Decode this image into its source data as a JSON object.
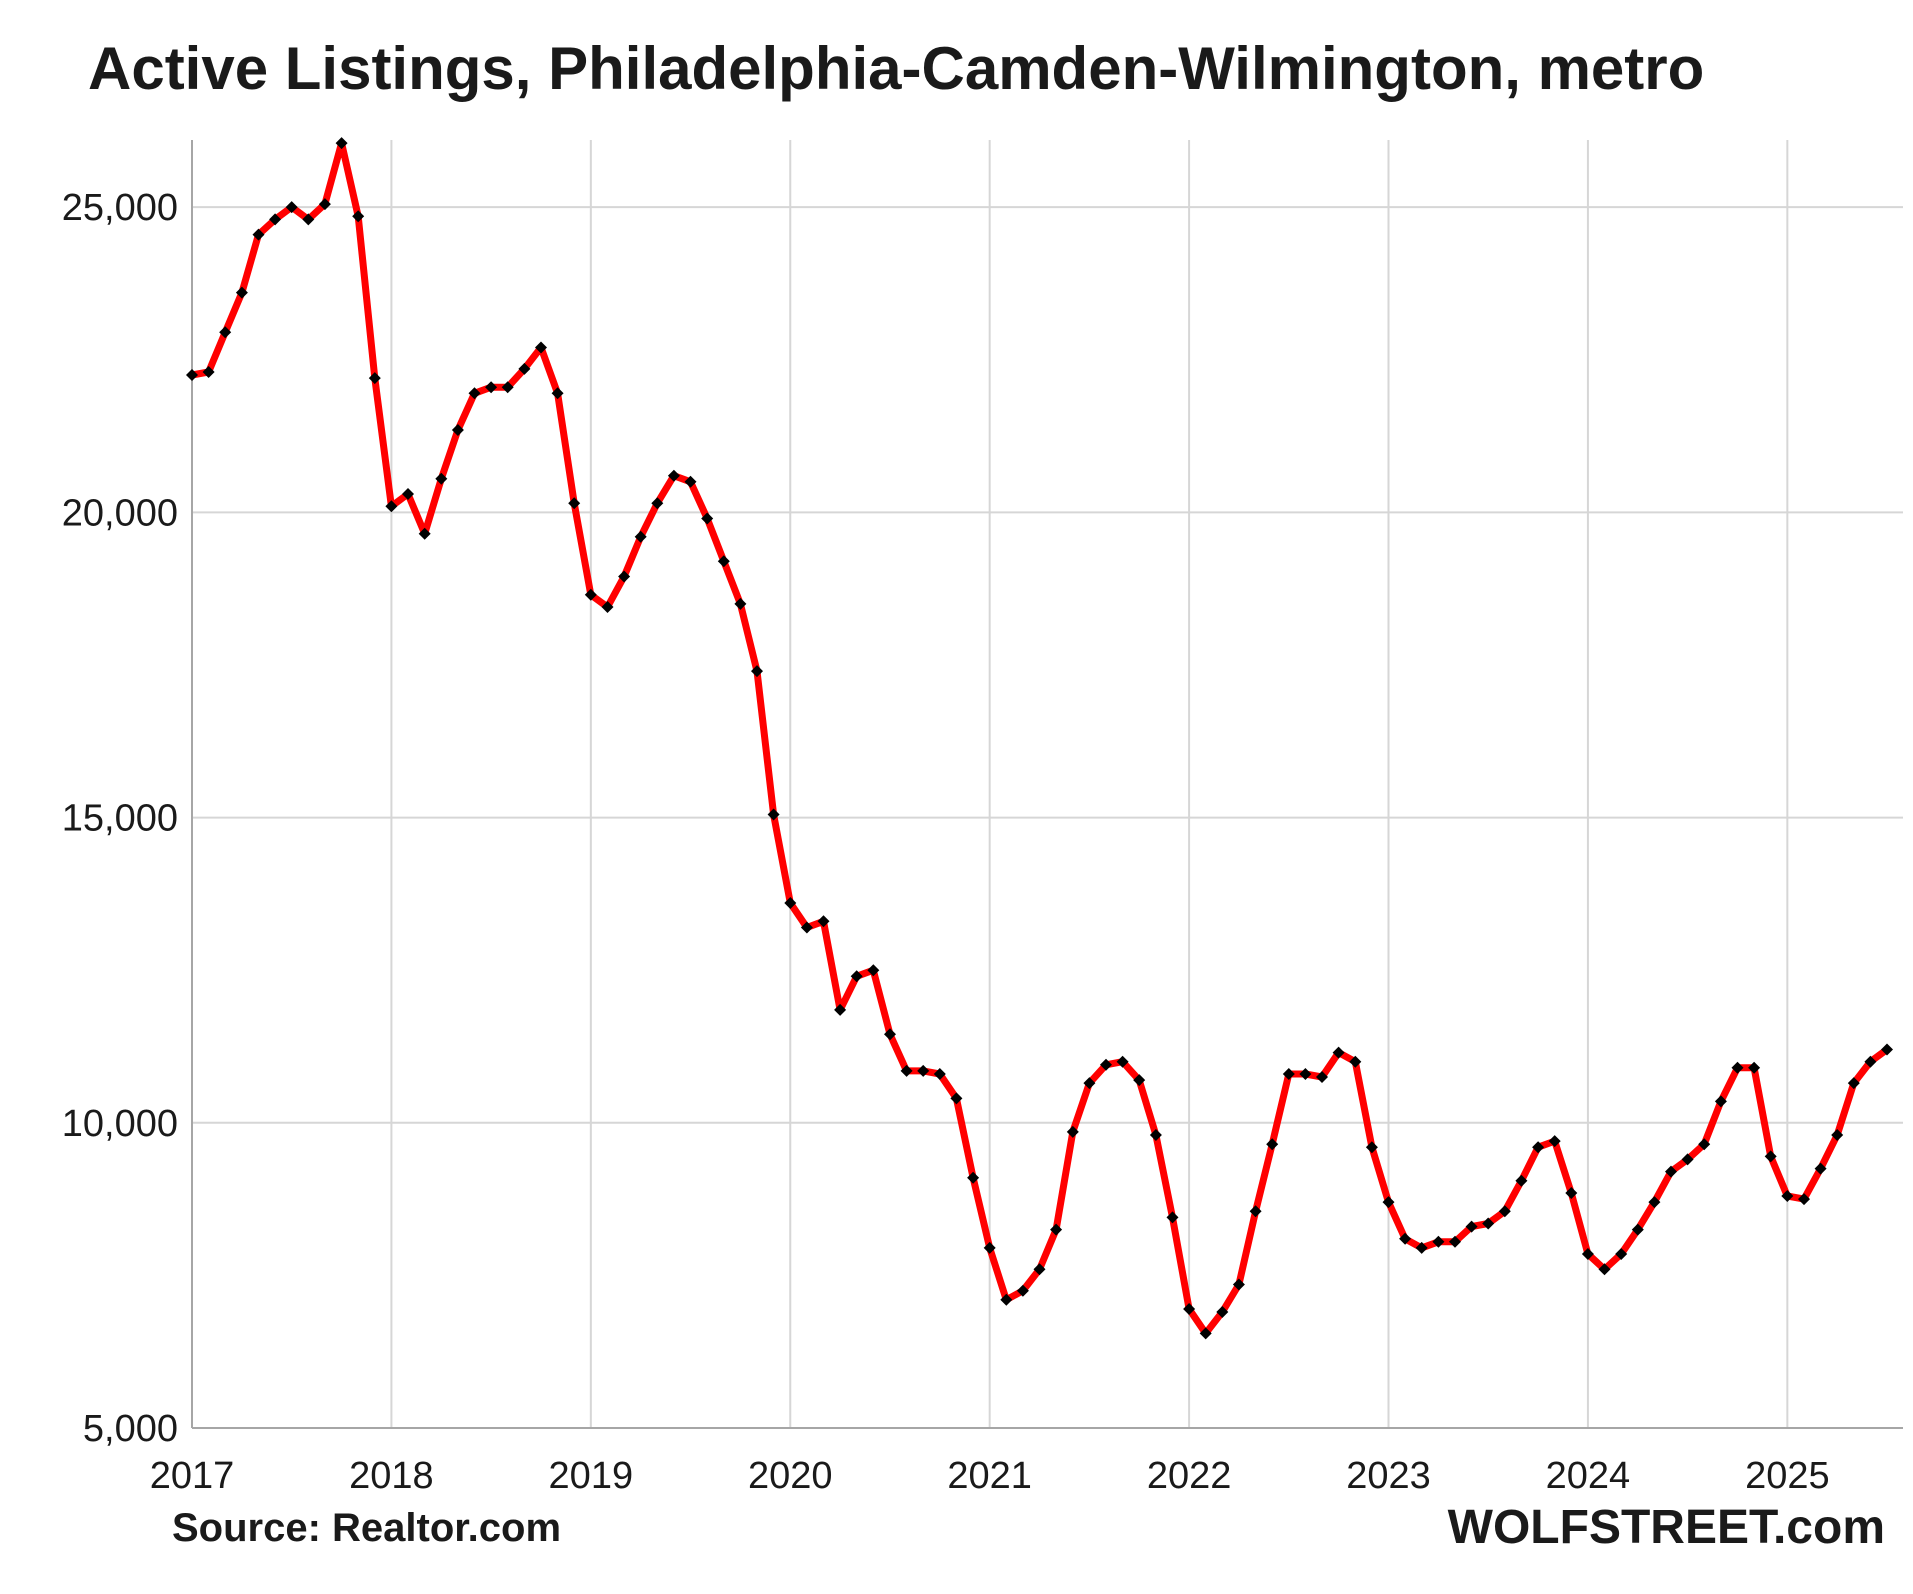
{
  "chart_data": {
    "type": "line",
    "title": "Active Listings, Philadelphia-Camden-Wilmington, metro",
    "xlabel": "",
    "ylabel": "",
    "x_start": "2017-01",
    "frequency": "monthly",
    "x_ticks": [
      "2017",
      "2018",
      "2019",
      "2020",
      "2021",
      "2022",
      "2023",
      "2024",
      "2025"
    ],
    "y_ticks": [
      "5,000",
      "10,000",
      "15,000",
      "20,000",
      "25,000"
    ],
    "y_tick_values": [
      5000,
      10000,
      15000,
      20000,
      25000
    ],
    "ylim": [
      5000,
      26100
    ],
    "xlim": [
      2017,
      2025.58
    ],
    "grid": true,
    "legend": "none",
    "series": [
      {
        "color": "#ff0000",
        "marker_color": "#000000",
        "values": [
          22250,
          22300,
          22950,
          23600,
          24550,
          24800,
          25000,
          24800,
          25050,
          26050,
          24850,
          22200,
          20100,
          20300,
          19650,
          20550,
          21350,
          21950,
          22050,
          22050,
          22350,
          22700,
          21950,
          20150,
          18650,
          18450,
          18950,
          19600,
          20150,
          20600,
          20500,
          19900,
          19200,
          18500,
          17400,
          15050,
          13600,
          13200,
          13300,
          11850,
          12400,
          12500,
          11450,
          10850,
          10850,
          10800,
          10400,
          9100,
          7950,
          7100,
          7250,
          7600,
          8250,
          9850,
          10650,
          10950,
          11000,
          10700,
          9800,
          8450,
          6950,
          6550,
          6900,
          7350,
          8550,
          9650,
          10800,
          10800,
          10750,
          11150,
          11000,
          9600,
          8700,
          8100,
          7950,
          8050,
          8050,
          8300,
          8350,
          8550,
          9050,
          9600,
          9700,
          8850,
          7850,
          7600,
          7850,
          8250,
          8700,
          9200,
          9400,
          9650,
          10350,
          10900,
          10900,
          9450,
          8800,
          8750,
          9250,
          9800,
          10650,
          11000,
          11200
        ]
      }
    ]
  },
  "footer": {
    "source": "Source: Realtor.com",
    "brand": "WOLFSTREET.com"
  }
}
